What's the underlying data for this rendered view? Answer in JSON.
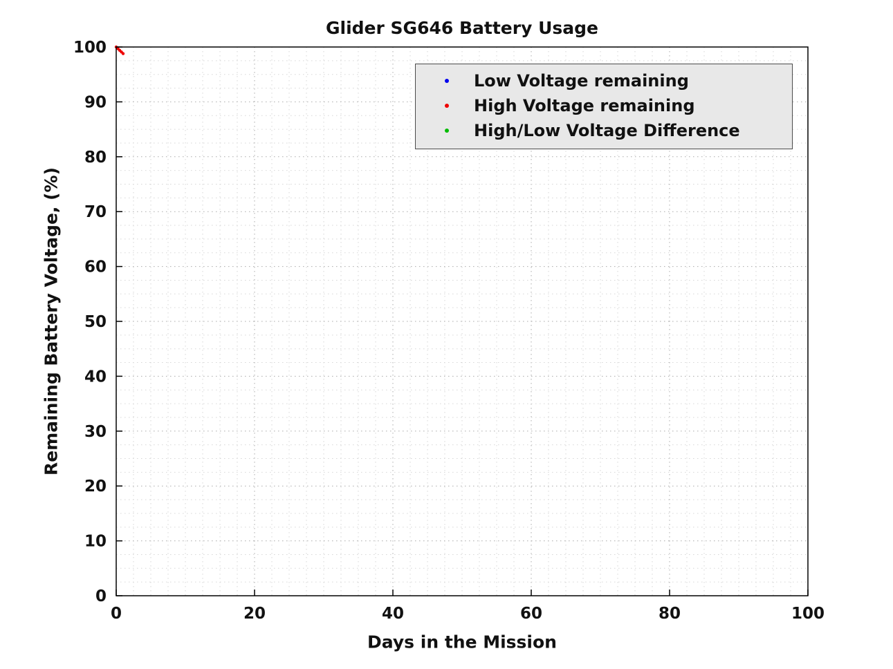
{
  "chart_data": {
    "type": "scatter",
    "title": "Glider SG646 Battery Usage",
    "xlabel": "Days in the Mission",
    "ylabel": "Remaining Battery Voltage, (%)",
    "xlim": [
      0,
      100
    ],
    "ylim": [
      0,
      100
    ],
    "xticks": [
      0,
      20,
      40,
      60,
      80,
      100
    ],
    "yticks": [
      0,
      10,
      20,
      30,
      40,
      50,
      60,
      70,
      80,
      90,
      100
    ],
    "minor_tick_step": 2.5,
    "grid": "dotted",
    "legend_position": "inside-top-right",
    "colors": {
      "axis": "#000000",
      "tick_label": "#111111",
      "grid_major": "#a9a9a9",
      "grid_minor": "#d6d6d6",
      "legend_background": "#e8e8e8",
      "legend_border": "#4a4a4a",
      "plot_background": "#ffffff"
    },
    "series": [
      {
        "name": "Low Voltage remaining",
        "color": "#0000ee",
        "marker": "dot",
        "points": []
      },
      {
        "name": "High Voltage remaining",
        "color": "#ee0000",
        "marker": "dot",
        "points": [
          [
            0,
            100
          ],
          [
            0.25,
            99.7
          ],
          [
            0.5,
            99.4
          ],
          [
            0.75,
            99.1
          ],
          [
            1,
            98.8
          ]
        ]
      },
      {
        "name": "High/Low Voltage Difference",
        "color": "#00bb00",
        "marker": "dot",
        "points": []
      }
    ]
  }
}
